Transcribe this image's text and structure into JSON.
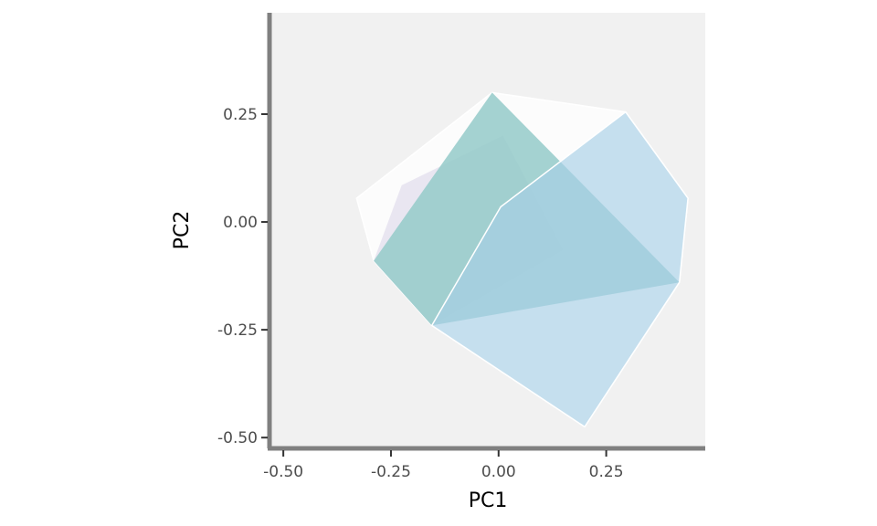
{
  "chart_data": {
    "type": "polygon",
    "xlabel": "PC1",
    "ylabel": "PC2",
    "xlim": [
      -0.53,
      0.48
    ],
    "ylim": [
      -0.525,
      0.485
    ],
    "xticks": [
      -0.5,
      -0.25,
      0.0,
      0.25
    ],
    "xtick_labels": [
      "-0.50",
      "-0.25",
      "0.00",
      "0.25"
    ],
    "yticks": [
      -0.5,
      -0.25,
      0.0,
      0.25
    ],
    "ytick_labels": [
      "-0.50",
      "-0.25",
      "0.00",
      "0.25"
    ],
    "grid": false,
    "panel_background": "#f1f1f1",
    "series": [
      {
        "fill": "#ffffff",
        "opacity": 0.75,
        "stroke": "#ffffff",
        "points": [
          [
            -0.33,
            0.055
          ],
          [
            -0.015,
            0.3
          ],
          [
            0.295,
            0.255
          ],
          [
            0.44,
            0.055
          ],
          [
            0.42,
            -0.14
          ],
          [
            0.2,
            -0.475
          ],
          [
            -0.155,
            -0.24
          ],
          [
            -0.29,
            -0.09
          ]
        ]
      },
      {
        "fill": "#d9d4e7",
        "opacity": 0.55,
        "stroke": "none",
        "points": [
          [
            -0.29,
            -0.09
          ],
          [
            -0.225,
            0.085
          ],
          [
            0.01,
            0.2
          ],
          [
            0.15,
            -0.065
          ],
          [
            -0.155,
            -0.24
          ]
        ]
      },
      {
        "fill": "#94cac9",
        "opacity": 0.85,
        "stroke": "none",
        "points": [
          [
            -0.29,
            -0.09
          ],
          [
            -0.015,
            0.3
          ],
          [
            0.42,
            -0.14
          ],
          [
            -0.155,
            -0.24
          ]
        ]
      },
      {
        "fill": "#a8d0e6",
        "opacity": 0.65,
        "stroke": "#ffffff",
        "points": [
          [
            -0.155,
            -0.24
          ],
          [
            0.005,
            0.035
          ],
          [
            0.295,
            0.255
          ],
          [
            0.44,
            0.055
          ],
          [
            0.42,
            -0.14
          ],
          [
            0.2,
            -0.475
          ]
        ]
      }
    ]
  }
}
